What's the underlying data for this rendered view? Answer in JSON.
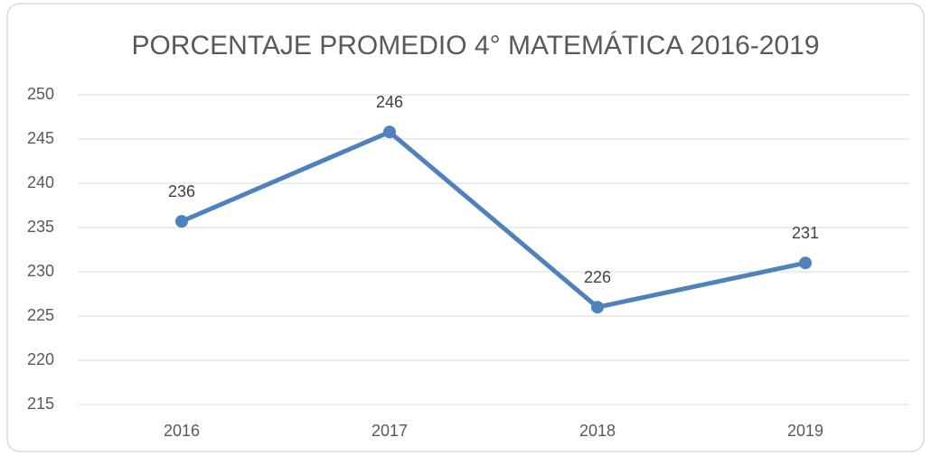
{
  "chart_data": {
    "type": "line",
    "title": "PORCENTAJE PROMEDIO 4° MATEMÁTICA 2016-2019",
    "categories": [
      "2016",
      "2017",
      "2018",
      "2019"
    ],
    "values": [
      235.7,
      245.8,
      226,
      231
    ],
    "value_labels": [
      "236",
      "246",
      "226",
      "231"
    ],
    "color": "#4f81bd",
    "ylim": [
      215,
      250
    ],
    "yticks": [
      215,
      220,
      225,
      230,
      235,
      240,
      245,
      250
    ],
    "grid": true
  }
}
